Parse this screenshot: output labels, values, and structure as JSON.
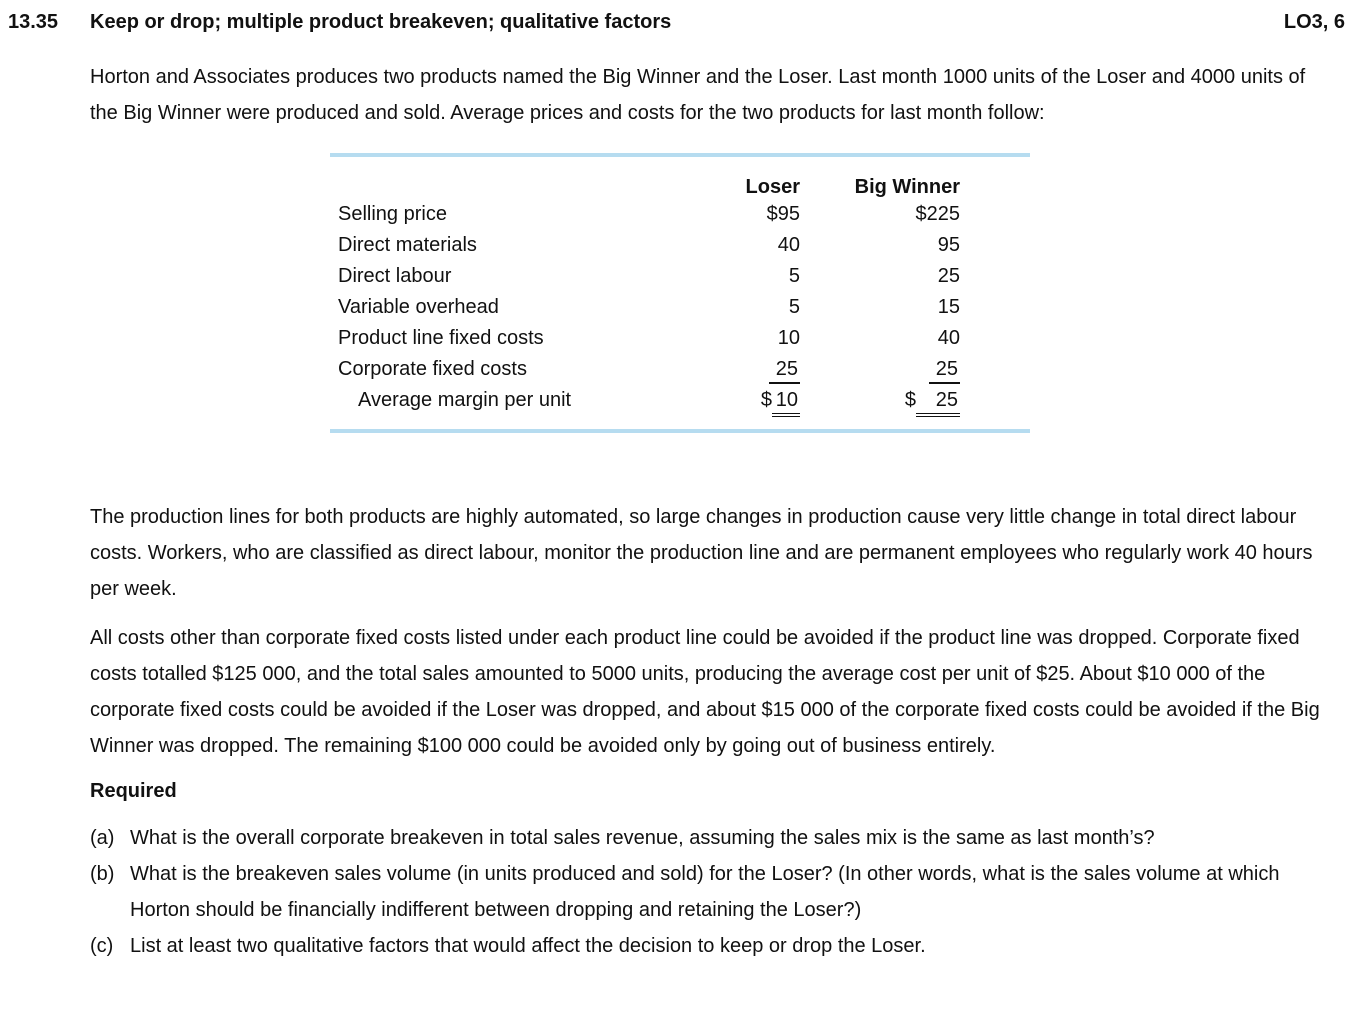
{
  "colors": {
    "table_rule": "#b6dcf0",
    "text": "#111111"
  },
  "problem": {
    "number": "13.35",
    "title": "Keep or drop; multiple product breakeven; qualitative factors",
    "learning_objective": "LO3, 6"
  },
  "paragraphs": {
    "intro": "Horton and Associates produces two products named the Big Winner and the Loser. Last month 1000 units of the Loser and 4000 units of the Big Winner were produced and sold. Average prices and costs for the two products for last month follow:",
    "production": "The production lines for both products are highly automated, so large changes in production cause very little change in total direct labour costs. Workers, who are classified as direct labour, monitor the production line and are permanent employees who regularly work 40 hours per week.",
    "costs": "All costs other than corporate fixed costs listed under each product line could be avoided if the product line was dropped. Corporate fixed costs totalled $125 000, and the total sales amounted to 5000 units, producing the average cost per unit of $25. About $10 000 of the corporate fixed costs could be avoided if the Loser was dropped, and about $15 000 of the corporate fixed costs could be avoided if the Big Winner was dropped. The remaining $100 000 could be avoided only by going out of business entirely."
  },
  "table": {
    "columns": {
      "loser": "Loser",
      "winner": "Big Winner"
    },
    "rows": [
      {
        "label": "Selling price",
        "loser": {
          "currency": "$",
          "value": "95"
        },
        "winner": {
          "currency": "$",
          "value": "225"
        }
      },
      {
        "label": "Direct materials",
        "loser": {
          "value": "40"
        },
        "winner": {
          "value": "95"
        }
      },
      {
        "label": "Direct labour",
        "loser": {
          "value": "5"
        },
        "winner": {
          "value": "25"
        }
      },
      {
        "label": "Variable overhead",
        "loser": {
          "value": "5"
        },
        "winner": {
          "value": "15"
        }
      },
      {
        "label": "Product line fixed costs",
        "loser": {
          "value": "10"
        },
        "winner": {
          "value": "40"
        }
      },
      {
        "label": "Corporate fixed costs",
        "loser": {
          "value": "25"
        },
        "winner": {
          "value": "25"
        }
      },
      {
        "label": "Average margin per unit",
        "loser": {
          "currency": "$",
          "value": "10"
        },
        "winner": {
          "currency": "$",
          "value": "25"
        }
      }
    ]
  },
  "required": {
    "heading": "Required",
    "items": [
      {
        "label": "(a)",
        "text": "What is the overall corporate breakeven in total sales revenue, assuming the sales mix is the same as last month’s?"
      },
      {
        "label": "(b)",
        "text": "What is the breakeven sales volume (in units produced and sold) for the Loser? (In other words, what is the sales volume at which Horton should be financially indifferent between dropping and retaining the Loser?)"
      },
      {
        "label": "(c)",
        "text": "List at least two qualitative factors that would affect the decision to keep or drop the Loser."
      }
    ]
  }
}
